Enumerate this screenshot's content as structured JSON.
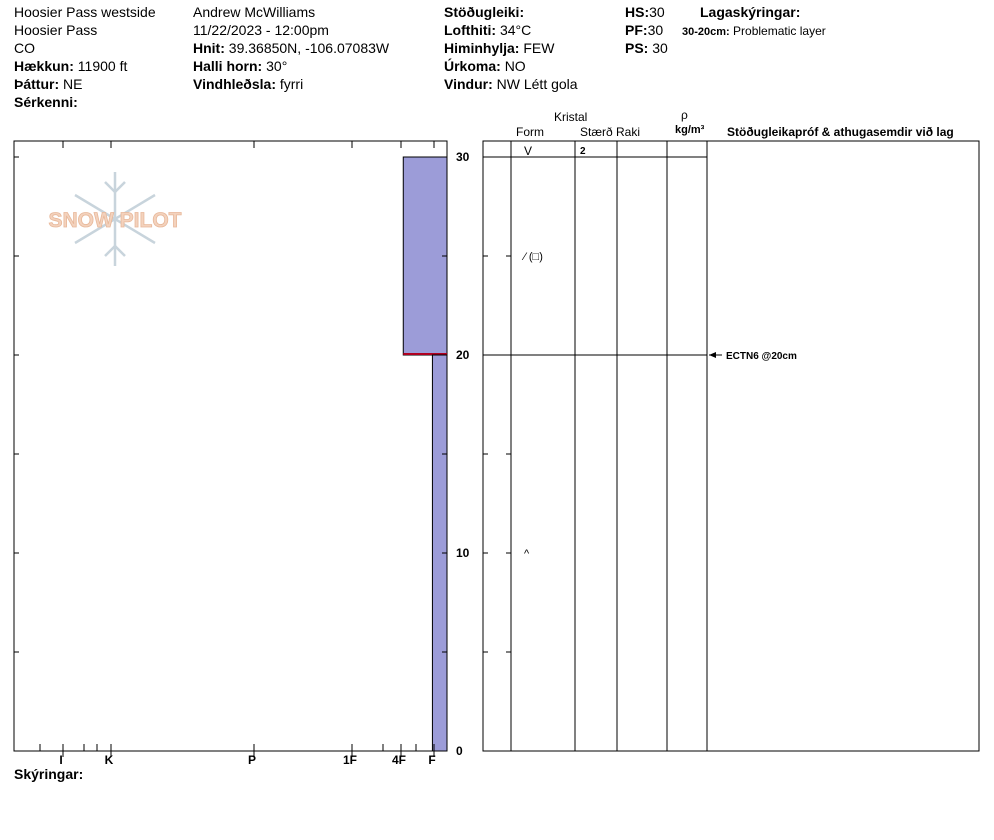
{
  "header": {
    "location": "Hoosier Pass westside",
    "area": "Hoosier Pass",
    "state": "CO",
    "elevation_label": "Hækkun:",
    "elevation_value": "11900 ft",
    "aspect_label": "Þáttur:",
    "aspect_value": "NE",
    "specifics_label": "Sérkenni:",
    "observer": "Andrew McWilliams",
    "datetime": "11/22/2023 - 12:00pm",
    "coords_label": "Hnit:",
    "coords_value": "39.36850N, -106.07083W",
    "slope_label": "Halli horn:",
    "slope_value": "30°",
    "wind_loading_label": "Vindhleðsla:",
    "wind_loading_value": "fyrri",
    "stability_label": "Stöðugleiki:",
    "air_temp_label": "Lofthiti:",
    "air_temp_value": "34°C",
    "sky_label": "Himinhylja:",
    "sky_value": "FEW",
    "precip_label": "Úrkoma:",
    "precip_value": "NO",
    "wind_label": "Vindur:",
    "wind_value": "NW Létt gola",
    "hs_label": "HS:",
    "hs_value": "30",
    "pf_label": "PF:",
    "pf_value": "30",
    "ps_label": "PS:",
    "ps_value": "30",
    "layer_notes_label": "Lagaskýringar:",
    "layer_note_depth": "30-20cm:",
    "layer_note_text": "Problematic layer"
  },
  "watermark": {
    "text": "SNOW PILOT",
    "icon": "snowflake-icon"
  },
  "table_headers": {
    "crystal": "Kristal",
    "form": "Form",
    "size": "Stærð",
    "moisture": "Raki",
    "rho": "ρ",
    "density_unit": "kg/m³",
    "tests": "Stöðugleikapróf & athugasemdir við lag"
  },
  "footer": {
    "comments_label": "Skýringar:"
  },
  "colors": {
    "layer_fill": "#9c9cd8",
    "weak_layer_line": "#b00020",
    "watermark": "#c8d4dc"
  },
  "chart_data": {
    "type": "bar",
    "title": "",
    "hardness_axis": {
      "labels": [
        "I",
        "K",
        "P",
        "1F",
        "4F",
        "F"
      ],
      "label_positions": [
        5,
        4,
        3,
        2,
        1,
        0.1
      ]
    },
    "depth_axis": {
      "min": 0,
      "max": 30,
      "ticks": [
        0,
        10,
        20,
        30
      ],
      "minor_step": 5,
      "unit": "cm"
    },
    "layers": [
      {
        "top": 30,
        "bottom": 20,
        "hardness": 0.9,
        "form": "⁄ (□)",
        "size": "2",
        "moisture": "",
        "weak_layer": true
      },
      {
        "top": 20,
        "bottom": 0,
        "hardness": 0.3,
        "form": "^",
        "size": "",
        "moisture": ""
      }
    ],
    "surface_form": "V",
    "tests": [
      {
        "depth": 20,
        "label": "ECTN6 @20cm"
      }
    ]
  }
}
